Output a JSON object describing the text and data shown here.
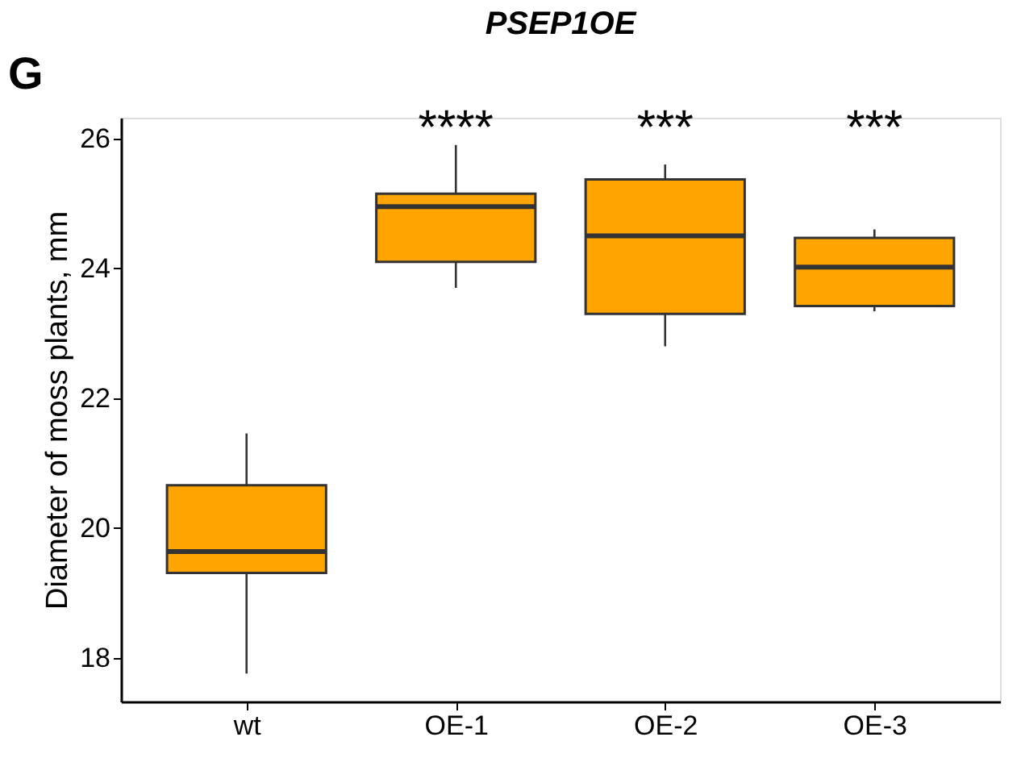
{
  "chart_data": {
    "type": "box",
    "title": "PSEP1OE",
    "ylabel": "Diameter of moss plants, mm",
    "categories": [
      "wt",
      "OE-1",
      "OE-2",
      "OE-3"
    ],
    "boxes": [
      {
        "low": 17.76,
        "q1": 19.31,
        "median": 19.64,
        "q3": 20.66,
        "high": 21.46
      },
      {
        "low": 23.7,
        "q1": 24.1,
        "median": 24.95,
        "q3": 25.15,
        "high": 25.9
      },
      {
        "low": 22.8,
        "q1": 23.3,
        "median": 24.5,
        "q3": 25.37,
        "high": 25.6
      },
      {
        "low": 23.34,
        "q1": 23.42,
        "median": 24.02,
        "q3": 24.47,
        "high": 24.6
      }
    ],
    "color": "#ffa500",
    "ylim": [
      17.33,
      26.32
    ],
    "yticks": [
      18,
      20,
      22,
      24,
      26
    ],
    "grid": false,
    "annotations": [
      "G",
      "****",
      "***",
      "***"
    ]
  }
}
